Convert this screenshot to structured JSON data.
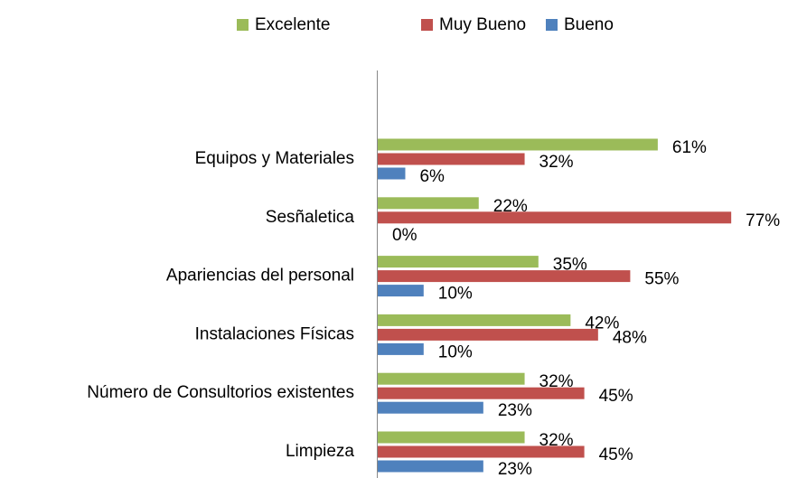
{
  "chart_data": {
    "type": "bar",
    "orientation": "horizontal",
    "legend": "top",
    "categories": [
      "Equipos y Materiales",
      "Sesñaletica",
      "Apariencias del personal ",
      "Instalaciones Físicas",
      "Número de Consultorios existentes",
      "Limpieza"
    ],
    "series": [
      {
        "name": "Excelente",
        "color": "#9bbb59",
        "values": [
          61,
          22,
          35,
          42,
          32,
          32
        ],
        "value_labels": [
          "61%",
          "22%",
          "35%",
          "42%",
          "32%",
          "32%"
        ]
      },
      {
        "name": "Muy Bueno",
        "color": "#c0504d",
        "values": [
          32,
          77,
          55,
          48,
          45,
          45
        ],
        "value_labels": [
          "32%",
          "77%",
          "55%",
          "48%",
          "45%",
          "45%"
        ]
      },
      {
        "name": "Bueno",
        "color": "#4f81bd",
        "values": [
          6,
          0,
          10,
          10,
          23,
          23
        ],
        "value_labels": [
          "6%",
          "0%",
          "10%",
          "10%",
          "23%",
          "23%"
        ]
      }
    ]
  }
}
